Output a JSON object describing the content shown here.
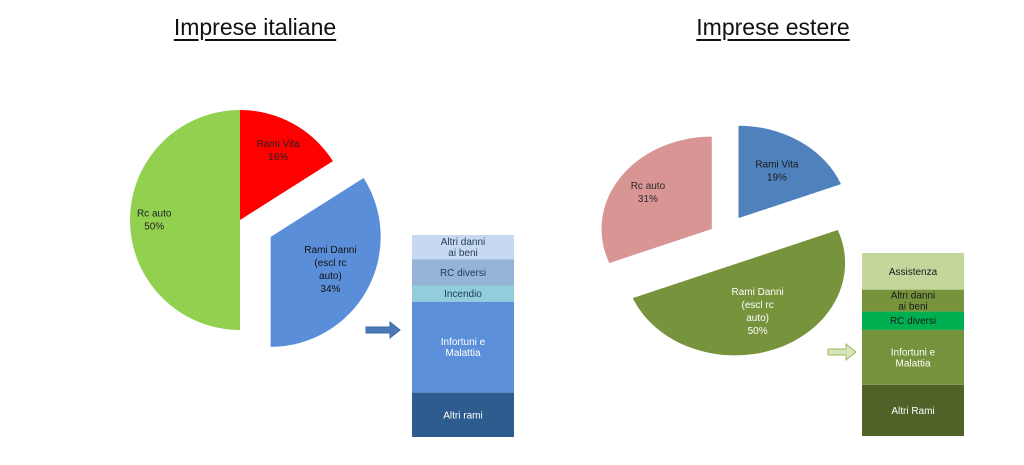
{
  "chart_data": [
    {
      "type": "pie",
      "title": "Imprese italiane",
      "slices": [
        {
          "label": "Rami Vita",
          "value": 16,
          "text": "16%",
          "color": "#ff0000",
          "text_color": "#222222"
        },
        {
          "label": "Rami Danni (escl rc auto)",
          "value": 34,
          "text": "34%",
          "color": "#5a8ed8",
          "text_color": "#111111"
        },
        {
          "label": "Rc auto",
          "value": 50,
          "text": "50%",
          "color": "#92d050",
          "text_color": "#222222"
        }
      ],
      "breakdown": {
        "of": "Rami Danni (escl rc auto)",
        "arrow_color": "#4a78b8",
        "segments": [
          {
            "label": "Altri rami",
            "share": 0.22,
            "color": "#2f5c8f",
            "text_color": "#ffffff"
          },
          {
            "label": "Infortuni e Malattia",
            "share": 0.45,
            "color": "#5b8fd9",
            "text_color": "#ffffff"
          },
          {
            "label": "Incendio",
            "share": 0.08,
            "color": "#92cddc",
            "text_color": "#1f3b5c"
          },
          {
            "label": "RC diversi",
            "share": 0.13,
            "color": "#95b3d7",
            "text_color": "#1f3b5c"
          },
          {
            "label": "Altri danni ai beni",
            "share": 0.12,
            "color": "#c6d9f0",
            "text_color": "#1f3b5c"
          }
        ]
      }
    },
    {
      "type": "pie",
      "title": "Imprese estere",
      "slices": [
        {
          "label": "Rami Vita",
          "value": 19,
          "text": "19%",
          "color": "#4f81bd",
          "text_color": "#1a1a1a"
        },
        {
          "label": "Rami Danni (escl rc auto)",
          "value": 50,
          "text": "50%",
          "color": "#77933c",
          "text_color": "#ffffff"
        },
        {
          "label": "Rc auto",
          "value": 31,
          "text": "31%",
          "color": "#d99594",
          "text_color": "#2a2a2a"
        }
      ],
      "breakdown": {
        "of": "Rami Danni (escl rc auto)",
        "arrow_color": "#d7e4bd",
        "segments": [
          {
            "label": "Altri Rami",
            "share": 0.28,
            "color": "#4f6228",
            "text_color": "#ffffff"
          },
          {
            "label": "Infortuni e Malattia",
            "share": 0.3,
            "color": "#76923c",
            "text_color": "#ffffff"
          },
          {
            "label": "RC diversi",
            "share": 0.1,
            "color": "#00b050",
            "text_color": "#1a1a1a"
          },
          {
            "label": "Altri danni ai beni",
            "share": 0.12,
            "color": "#77933c",
            "text_color": "#1a1a1a"
          },
          {
            "label": "Assistenza",
            "share": 0.2,
            "color": "#c3d69b",
            "text_color": "#1a1a1a"
          }
        ]
      }
    }
  ]
}
